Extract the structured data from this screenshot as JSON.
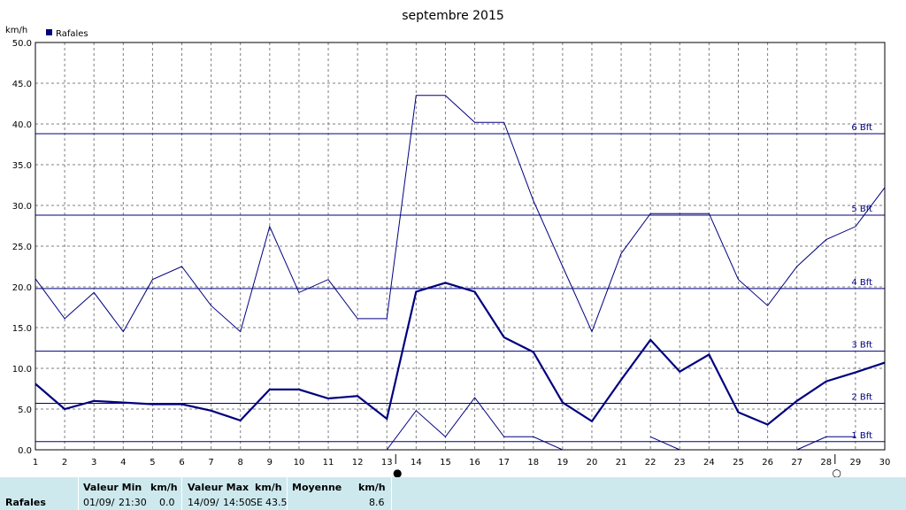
{
  "chart_data": {
    "type": "line",
    "title": "septembre 2015",
    "ylabel": "km/h",
    "legend": {
      "label": "Rafales",
      "placement": "top-left"
    },
    "ylim": [
      0,
      50
    ],
    "y_ticks": [
      "0.0",
      "5.0",
      "10.0",
      "15.0",
      "20.0",
      "25.0",
      "30.0",
      "35.0",
      "40.0",
      "45.0",
      "50.0"
    ],
    "x": [
      1,
      2,
      3,
      4,
      5,
      6,
      7,
      8,
      9,
      10,
      11,
      12,
      13,
      14,
      15,
      16,
      17,
      18,
      19,
      20,
      21,
      22,
      23,
      24,
      25,
      26,
      27,
      28,
      29,
      30
    ],
    "grid": true,
    "series": [
      {
        "name": "Rafales",
        "role": "max",
        "values": [
          21.0,
          16.1,
          19.3,
          14.5,
          20.9,
          22.5,
          17.7,
          14.5,
          27.4,
          19.3,
          20.9,
          16.1,
          16.1,
          43.5,
          43.5,
          40.2,
          40.2,
          30.6,
          22.5,
          14.5,
          24.1,
          29.0,
          29.0,
          29.0,
          20.9,
          17.7,
          22.5,
          25.8,
          27.4,
          32.2
        ]
      },
      {
        "name": "Rafales",
        "role": "mean",
        "values": [
          8.1,
          5.0,
          6.0,
          5.8,
          5.6,
          5.6,
          4.8,
          3.6,
          7.4,
          7.4,
          6.3,
          6.6,
          3.8,
          19.4,
          20.5,
          19.4,
          13.8,
          12.0,
          5.8,
          3.5,
          8.6,
          13.5,
          9.6,
          11.7,
          4.6,
          3.1,
          6.0,
          8.4,
          9.5,
          10.7
        ]
      },
      {
        "name": "Rafales",
        "role": "min",
        "values": [
          null,
          null,
          null,
          null,
          null,
          null,
          null,
          null,
          null,
          null,
          null,
          null,
          0.0,
          4.8,
          1.6,
          6.4,
          1.6,
          1.6,
          0.0,
          null,
          null,
          1.6,
          0.0,
          null,
          null,
          null,
          0.0,
          1.6,
          1.6,
          null
        ]
      }
    ],
    "beaufort_lines": [
      {
        "label": "1 Bft",
        "value": 1.0
      },
      {
        "label": "2 Bft",
        "value": 5.7
      },
      {
        "label": "3 Bft",
        "value": 12.1
      },
      {
        "label": "4 Bft",
        "value": 19.8
      },
      {
        "label": "5 Bft",
        "value": 28.8
      },
      {
        "label": "6 Bft",
        "value": 38.8
      }
    ],
    "moon_markers": [
      {
        "day": 13,
        "symbol": "●"
      },
      {
        "day": 28,
        "symbol": "○"
      }
    ],
    "colors": {
      "series": "#00007f",
      "grid": "#7f7f7f"
    }
  },
  "footer": {
    "row_label": "Rafales",
    "min_header": "Valeur Min",
    "min_unit": "km/h",
    "min_date": "01/09/",
    "min_time": "21:30",
    "min_value": "0.0",
    "max_header": "Valeur Max",
    "max_unit": "km/h",
    "max_date": "14/09/",
    "max_time": "14:50",
    "max_dir": "SE",
    "max_value": "43.5",
    "avg_header": "Moyenne",
    "avg_unit": "km/h",
    "avg_value": "8.6"
  }
}
